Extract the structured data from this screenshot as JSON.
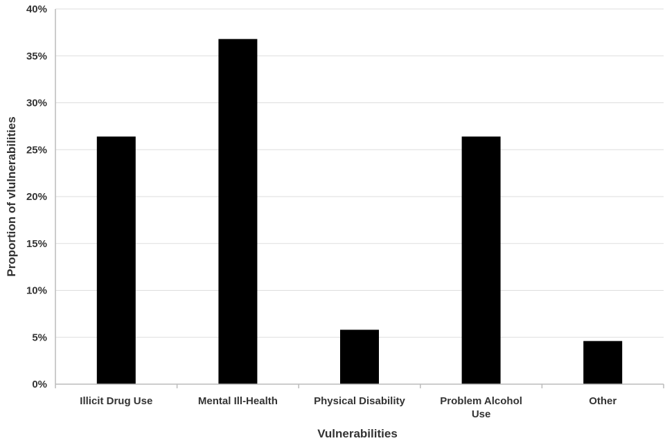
{
  "chart_data": {
    "type": "bar",
    "title": "",
    "xlabel": "Vulnerabilities",
    "ylabel": "Proportion of vlulnerabilities",
    "categories": [
      [
        "Illicit Drug Use"
      ],
      [
        "Mental Ill-Health"
      ],
      [
        "Physical Disability"
      ],
      [
        "Problem Alcohol",
        "Use"
      ],
      [
        "Other"
      ]
    ],
    "values": [
      26.4,
      36.8,
      5.8,
      26.4,
      4.6
    ],
    "ylim": [
      0,
      40
    ],
    "yticks": [
      0,
      5,
      10,
      15,
      20,
      25,
      30,
      35,
      40
    ],
    "ytick_labels": [
      "0%",
      "5%",
      "10%",
      "15%",
      "20%",
      "25%",
      "30%",
      "35%",
      "40%"
    ],
    "grid": true,
    "legend": false,
    "colors": {
      "bar": "#000000",
      "grid": "#dddddd",
      "axis": "#bbbbbb",
      "text": "#333333"
    }
  }
}
